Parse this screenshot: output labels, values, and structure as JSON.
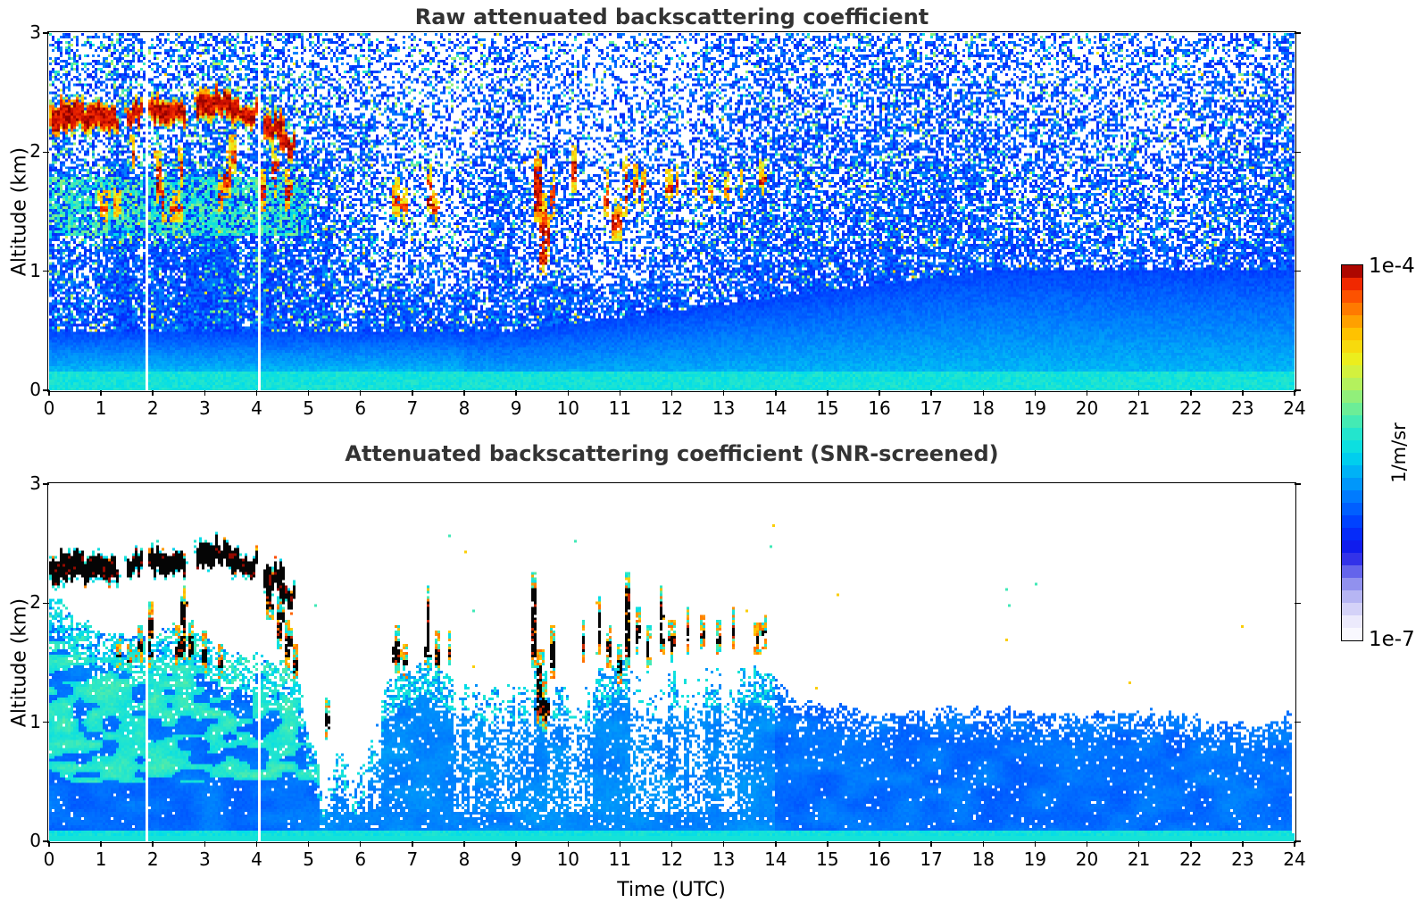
{
  "figure": {
    "background": "#ffffff",
    "title_color": "#333333",
    "colorbar": {
      "max_label": "1e-4",
      "min_label": "1e-7",
      "units_label": "1/m/sr",
      "bands": 30,
      "stops": [
        {
          "u": 0.0,
          "c": "#ffffff"
        },
        {
          "u": 0.05,
          "c": "#eceafc"
        },
        {
          "u": 0.1,
          "c": "#c8c6f6"
        },
        {
          "u": 0.145,
          "c": "#9898ee"
        },
        {
          "u": 0.19,
          "c": "#5b5bea"
        },
        {
          "u": 0.235,
          "c": "#1515e8"
        },
        {
          "u": 0.3,
          "c": "#0033ff"
        },
        {
          "u": 0.37,
          "c": "#0070ff"
        },
        {
          "u": 0.44,
          "c": "#00aaf8"
        },
        {
          "u": 0.5,
          "c": "#00dcea"
        },
        {
          "u": 0.565,
          "c": "#2ee8c4"
        },
        {
          "u": 0.63,
          "c": "#7cee8c"
        },
        {
          "u": 0.7,
          "c": "#c6f24e"
        },
        {
          "u": 0.755,
          "c": "#f0ee18"
        },
        {
          "u": 0.815,
          "c": "#ffc400"
        },
        {
          "u": 0.865,
          "c": "#ff9000"
        },
        {
          "u": 0.91,
          "c": "#ff5a00"
        },
        {
          "u": 0.95,
          "c": "#f02800"
        },
        {
          "u": 0.975,
          "c": "#c40a00"
        },
        {
          "u": 1.0,
          "c": "#7e0000"
        }
      ]
    }
  },
  "chart_data": [
    {
      "panel": "top",
      "type": "heatmap",
      "title": "Raw attenuated backscattering coefficient",
      "xlabel": "",
      "ylabel": "Altitude (km)",
      "x_range": [
        0,
        24
      ],
      "y_range": [
        0,
        3
      ],
      "x_ticks": [
        0,
        1,
        2,
        3,
        4,
        5,
        6,
        7,
        8,
        9,
        10,
        11,
        12,
        13,
        14,
        15,
        16,
        17,
        18,
        19,
        20,
        21,
        22,
        23,
        24
      ],
      "y_ticks": [
        0,
        1,
        2,
        3
      ],
      "value_min": "1e-7",
      "value_max": "1e-4",
      "units": "1/m/sr",
      "features": {
        "data_gap_hours": [
          1.87,
          4.05
        ],
        "cloud_blobs": [
          [
            0.05,
            0.65,
            2.3,
            0.14
          ],
          [
            0.6,
            1.3,
            2.28,
            0.12
          ],
          [
            1.5,
            1.78,
            2.33,
            0.1
          ],
          [
            1.95,
            2.3,
            2.36,
            0.12
          ],
          [
            2.3,
            2.62,
            2.33,
            0.1
          ],
          [
            2.85,
            3.25,
            2.42,
            0.13
          ],
          [
            3.25,
            3.65,
            2.4,
            0.12
          ],
          [
            3.7,
            4.05,
            2.32,
            0.09
          ],
          [
            4.15,
            4.5,
            2.22,
            0.12
          ],
          [
            4.45,
            4.72,
            2.05,
            0.1
          ]
        ],
        "red_streaks": [
          [
            1.05,
            0.12,
            1.45,
            1.62
          ],
          [
            1.3,
            0.08,
            1.5,
            1.65
          ],
          [
            1.62,
            0.05,
            1.9,
            2.1
          ],
          [
            2.1,
            0.06,
            1.6,
            1.95
          ],
          [
            2.2,
            0.05,
            1.45,
            1.75
          ],
          [
            2.45,
            0.12,
            1.45,
            1.62
          ],
          [
            2.55,
            0.05,
            1.75,
            2.0
          ],
          [
            3.3,
            0.07,
            1.55,
            1.75
          ],
          [
            3.45,
            0.1,
            1.65,
            1.95
          ],
          [
            3.55,
            0.08,
            1.85,
            2.1
          ],
          [
            4.1,
            0.08,
            1.55,
            1.8
          ],
          [
            4.35,
            0.06,
            1.65,
            2.0
          ],
          [
            4.6,
            0.06,
            1.55,
            1.8
          ],
          [
            6.7,
            0.09,
            1.5,
            1.72
          ],
          [
            6.85,
            0.06,
            1.45,
            1.65
          ],
          [
            7.35,
            0.05,
            1.5,
            1.85
          ],
          [
            7.45,
            0.06,
            1.42,
            1.62
          ],
          [
            9.42,
            0.06,
            1.45,
            1.95
          ],
          [
            9.52,
            0.08,
            1.0,
            1.6
          ],
          [
            9.62,
            0.06,
            1.15,
            1.45
          ],
          [
            9.72,
            0.04,
            1.5,
            1.8
          ],
          [
            10.12,
            0.04,
            1.7,
            2.0
          ],
          [
            10.75,
            0.05,
            1.5,
            1.8
          ],
          [
            10.95,
            0.09,
            1.3,
            1.55
          ],
          [
            11.12,
            0.05,
            1.5,
            1.9
          ],
          [
            11.3,
            0.04,
            1.6,
            1.85
          ],
          [
            11.45,
            0.05,
            1.55,
            1.8
          ],
          [
            11.95,
            0.06,
            1.6,
            1.8
          ],
          [
            12.1,
            0.04,
            1.65,
            1.85
          ],
          [
            12.45,
            0.04,
            1.62,
            1.78
          ],
          [
            12.75,
            0.04,
            1.6,
            1.75
          ],
          [
            13.05,
            0.04,
            1.62,
            1.78
          ],
          [
            13.35,
            0.04,
            1.65,
            1.8
          ],
          [
            13.75,
            0.07,
            1.68,
            1.88
          ]
        ],
        "white_streak_bands": [
          [
            6.3,
            8.2
          ],
          [
            9.2,
            12.4
          ]
        ],
        "cyan_layer": {
          "hours": [
            0,
            5
          ],
          "alt_km": [
            1.3,
            1.8
          ]
        }
      }
    },
    {
      "panel": "bottom",
      "type": "heatmap",
      "title": "Attenuated backscattering coefficient (SNR-screened)",
      "xlabel": "Time (UTC)",
      "ylabel": "Altitude (km)",
      "x_range": [
        0,
        24
      ],
      "y_range": [
        0,
        3
      ],
      "x_ticks": [
        0,
        1,
        2,
        3,
        4,
        5,
        6,
        7,
        8,
        9,
        10,
        11,
        12,
        13,
        14,
        15,
        16,
        17,
        18,
        19,
        20,
        21,
        22,
        23,
        24
      ],
      "y_ticks": [
        0,
        1,
        2,
        3
      ],
      "value_min": "1e-7",
      "value_max": "1e-4",
      "units": "1/m/sr",
      "features": {
        "data_gap_hours": [
          1.87,
          4.05
        ],
        "data_end_hour": 23.93,
        "boundary_km": [
          [
            0,
            2.05
          ],
          [
            0.5,
            1.9
          ],
          [
            1,
            1.75
          ],
          [
            1.5,
            1.7
          ],
          [
            2,
            1.75
          ],
          [
            2.5,
            1.8
          ],
          [
            3,
            1.75
          ],
          [
            3.5,
            1.6
          ],
          [
            4,
            1.55
          ],
          [
            4.5,
            1.5
          ],
          [
            4.8,
            1.45
          ],
          [
            5.0,
            0.9
          ],
          [
            5.3,
            0.5
          ],
          [
            5.6,
            0.75
          ],
          [
            5.9,
            0.55
          ],
          [
            6.2,
            0.8
          ],
          [
            6.5,
            1.35
          ],
          [
            6.8,
            1.5
          ],
          [
            7,
            1.45
          ],
          [
            7.3,
            1.55
          ],
          [
            7.6,
            1.45
          ],
          [
            8,
            1.35
          ],
          [
            8.4,
            1.3
          ],
          [
            8.8,
            1.35
          ],
          [
            9.2,
            1.3
          ],
          [
            9.5,
            1.55
          ],
          [
            9.8,
            1.3
          ],
          [
            10,
            1.25
          ],
          [
            10.4,
            1.3
          ],
          [
            10.7,
            1.45
          ],
          [
            11,
            1.5
          ],
          [
            11.3,
            1.45
          ],
          [
            11.6,
            1.4
          ],
          [
            12,
            1.45
          ],
          [
            12.4,
            1.4
          ],
          [
            12.8,
            1.45
          ],
          [
            13.2,
            1.4
          ],
          [
            13.6,
            1.45
          ],
          [
            14,
            1.4
          ],
          [
            14.3,
            1.2
          ],
          [
            15,
            1.15
          ],
          [
            16,
            1.1
          ],
          [
            17,
            1.12
          ],
          [
            18,
            1.08
          ],
          [
            19,
            1.1
          ],
          [
            20,
            1.05
          ],
          [
            21,
            1.1
          ],
          [
            22,
            1.05
          ],
          [
            23,
            0.95
          ],
          [
            23.5,
            1.0
          ],
          [
            24,
            1.05
          ]
        ],
        "cloud_blobs": [
          [
            0.05,
            0.65,
            2.3,
            0.14
          ],
          [
            0.6,
            1.3,
            2.28,
            0.12
          ],
          [
            1.5,
            1.78,
            2.33,
            0.1
          ],
          [
            1.95,
            2.3,
            2.36,
            0.12
          ],
          [
            2.3,
            2.62,
            2.33,
            0.1
          ],
          [
            2.85,
            3.25,
            2.42,
            0.13
          ],
          [
            3.25,
            3.65,
            2.4,
            0.12
          ],
          [
            3.7,
            4.05,
            2.32,
            0.09
          ],
          [
            4.15,
            4.5,
            2.22,
            0.12
          ],
          [
            4.45,
            4.72,
            2.05,
            0.1
          ]
        ],
        "black_streaks": [
          [
            1.35,
            0.06,
            1.5,
            1.65
          ],
          [
            1.55,
            0.05,
            1.45,
            1.6
          ],
          [
            1.75,
            0.06,
            1.55,
            1.75
          ],
          [
            1.95,
            0.05,
            1.5,
            1.95
          ],
          [
            2.5,
            0.06,
            1.5,
            1.75
          ],
          [
            2.6,
            0.05,
            1.55,
            2.1
          ],
          [
            2.75,
            0.05,
            1.5,
            1.8
          ],
          [
            3.0,
            0.05,
            1.45,
            1.7
          ],
          [
            3.3,
            0.08,
            1.4,
            1.6
          ],
          [
            4.25,
            0.06,
            1.9,
            2.25
          ],
          [
            4.45,
            0.07,
            1.65,
            2.0
          ],
          [
            4.6,
            0.06,
            1.5,
            1.8
          ],
          [
            4.75,
            0.05,
            1.35,
            1.6
          ],
          [
            5.35,
            0.05,
            0.9,
            1.15
          ],
          [
            6.7,
            0.08,
            1.45,
            1.75
          ],
          [
            6.85,
            0.06,
            1.4,
            1.6
          ],
          [
            7.3,
            0.05,
            1.5,
            2.1
          ],
          [
            7.5,
            0.06,
            1.42,
            1.7
          ],
          [
            7.7,
            0.04,
            1.5,
            1.7
          ],
          [
            9.35,
            0.05,
            1.5,
            2.2
          ],
          [
            9.45,
            0.07,
            1.0,
            1.55
          ],
          [
            9.55,
            0.08,
            0.95,
            1.3
          ],
          [
            9.7,
            0.05,
            1.4,
            1.75
          ],
          [
            10.3,
            0.04,
            1.55,
            1.8
          ],
          [
            10.6,
            0.04,
            1.6,
            2.0
          ],
          [
            10.8,
            0.05,
            1.5,
            1.75
          ],
          [
            11.0,
            0.06,
            1.35,
            1.6
          ],
          [
            11.15,
            0.05,
            1.5,
            2.2
          ],
          [
            11.35,
            0.04,
            1.6,
            1.9
          ],
          [
            11.55,
            0.05,
            1.5,
            1.75
          ],
          [
            11.8,
            0.04,
            1.6,
            2.1
          ],
          [
            12.0,
            0.05,
            1.55,
            1.8
          ],
          [
            12.3,
            0.04,
            1.6,
            1.9
          ],
          [
            12.6,
            0.04,
            1.65,
            1.85
          ],
          [
            12.9,
            0.04,
            1.6,
            1.8
          ],
          [
            13.2,
            0.04,
            1.65,
            1.9
          ],
          [
            13.65,
            0.06,
            1.6,
            1.8
          ],
          [
            13.8,
            0.06,
            1.65,
            1.85
          ]
        ],
        "hole_bands": [
          [
            5.0,
            6.4
          ],
          [
            7.8,
            9.35
          ],
          [
            9.6,
            10.5
          ],
          [
            11.2,
            13.6
          ]
        ]
      }
    }
  ]
}
